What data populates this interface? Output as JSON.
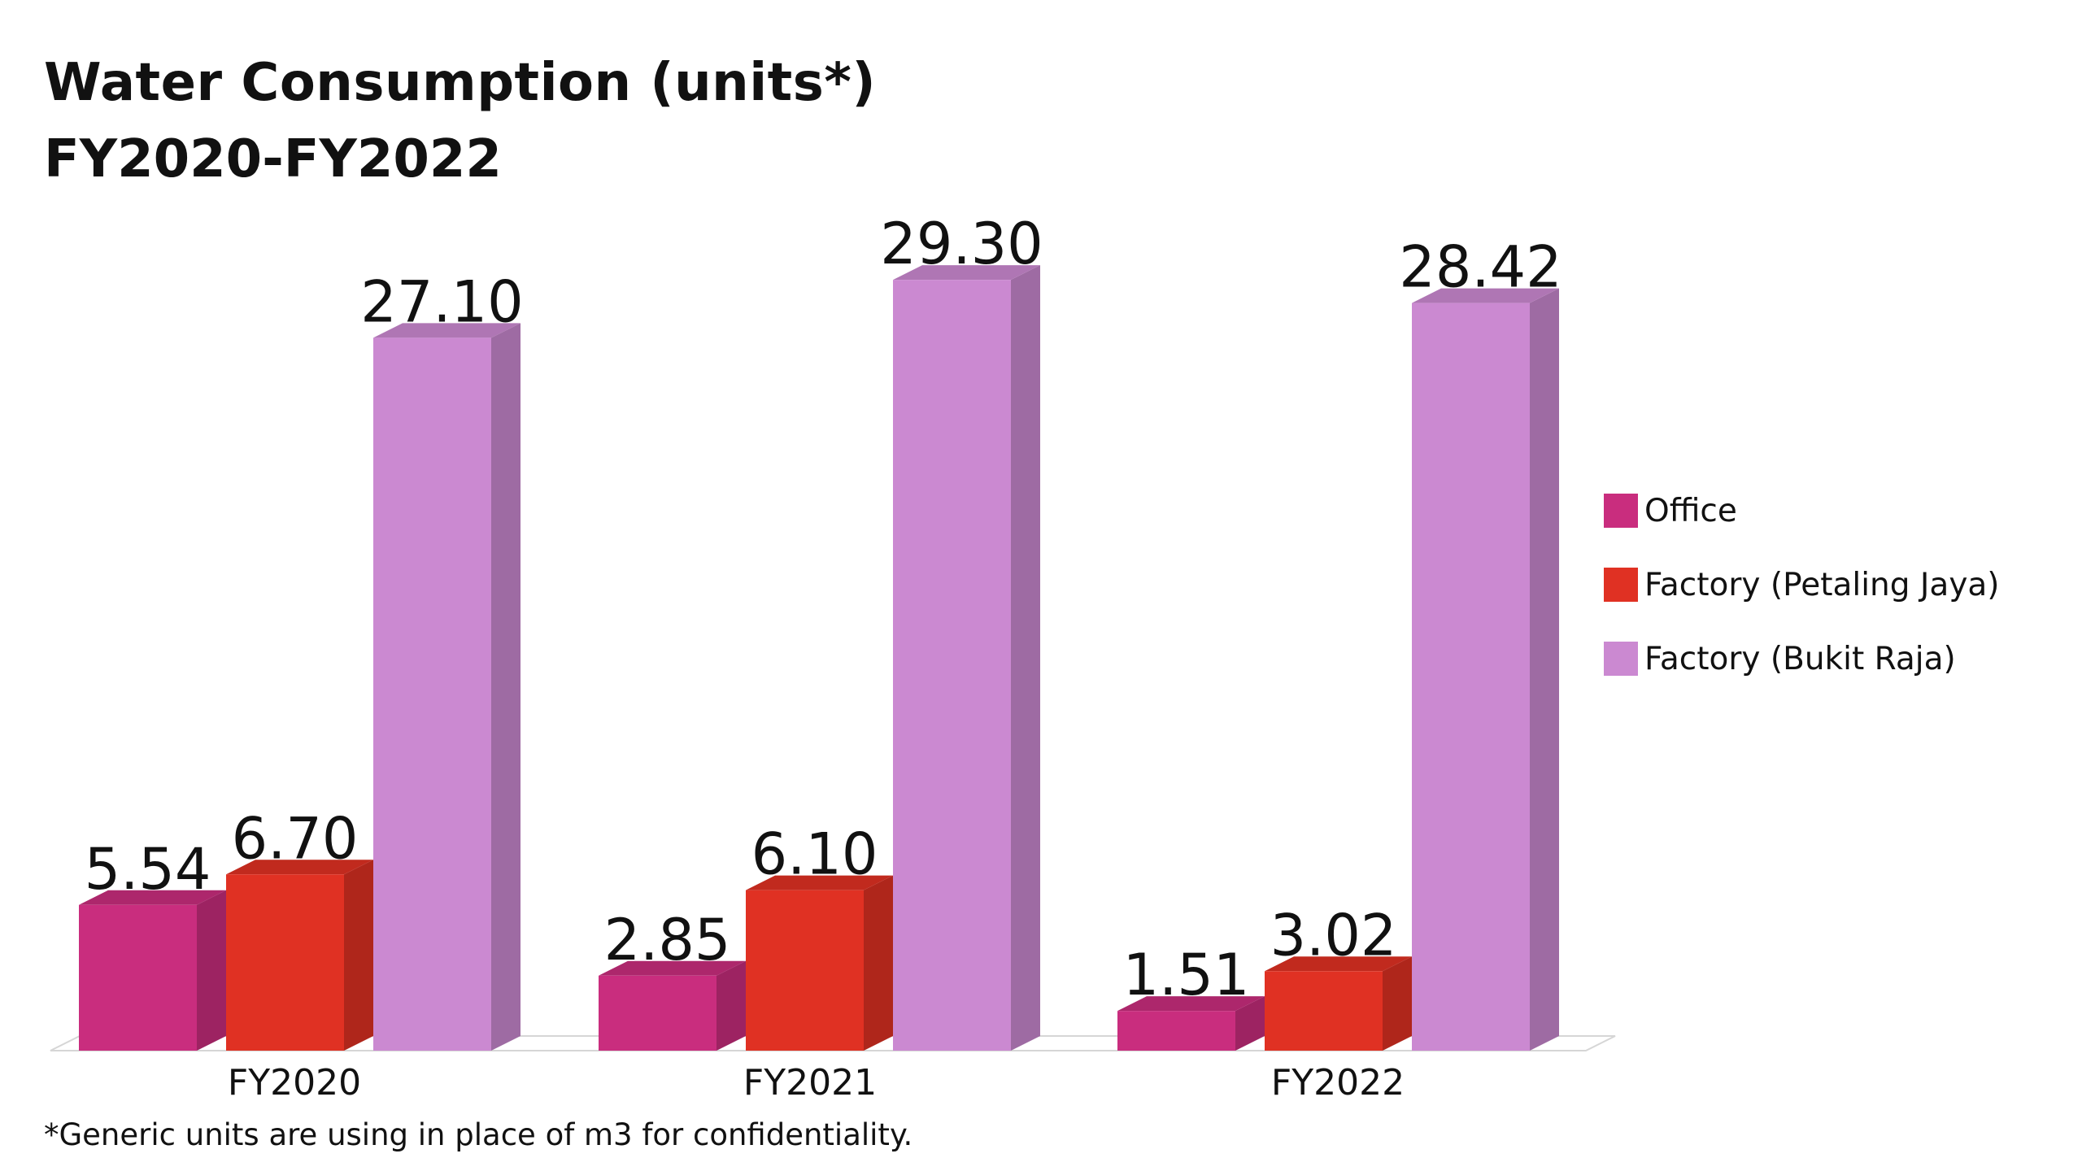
{
  "chart_data": {
    "type": "bar",
    "title": "Water Consumption (units*)",
    "subtitle": "FY2020-FY2022",
    "categories": [
      "FY2020",
      "FY2021",
      "FY2022"
    ],
    "series": [
      {
        "name": "Office",
        "values": [
          5.54,
          2.85,
          1.51
        ],
        "labels": [
          "5.54",
          "2.85",
          "1.51"
        ],
        "color": "#c92d7e"
      },
      {
        "name": "Factory (Petaling Jaya)",
        "values": [
          6.7,
          6.1,
          3.02
        ],
        "labels": [
          "6.70",
          "6.10",
          "3.02"
        ],
        "color": "#e03123"
      },
      {
        "name": "Factory (Bukit Raja)",
        "values": [
          27.1,
          29.3,
          28.42
        ],
        "labels": [
          "27.10",
          "29.30",
          "28.42"
        ],
        "color": "#cb89d1"
      }
    ],
    "xlabel": "",
    "ylabel": "",
    "ylim": [
      0,
      30
    ],
    "grid": false,
    "legend_position": "right",
    "style": "3d-columns"
  },
  "footnote": "*Generic units are using in place of m3 for confidentiality."
}
